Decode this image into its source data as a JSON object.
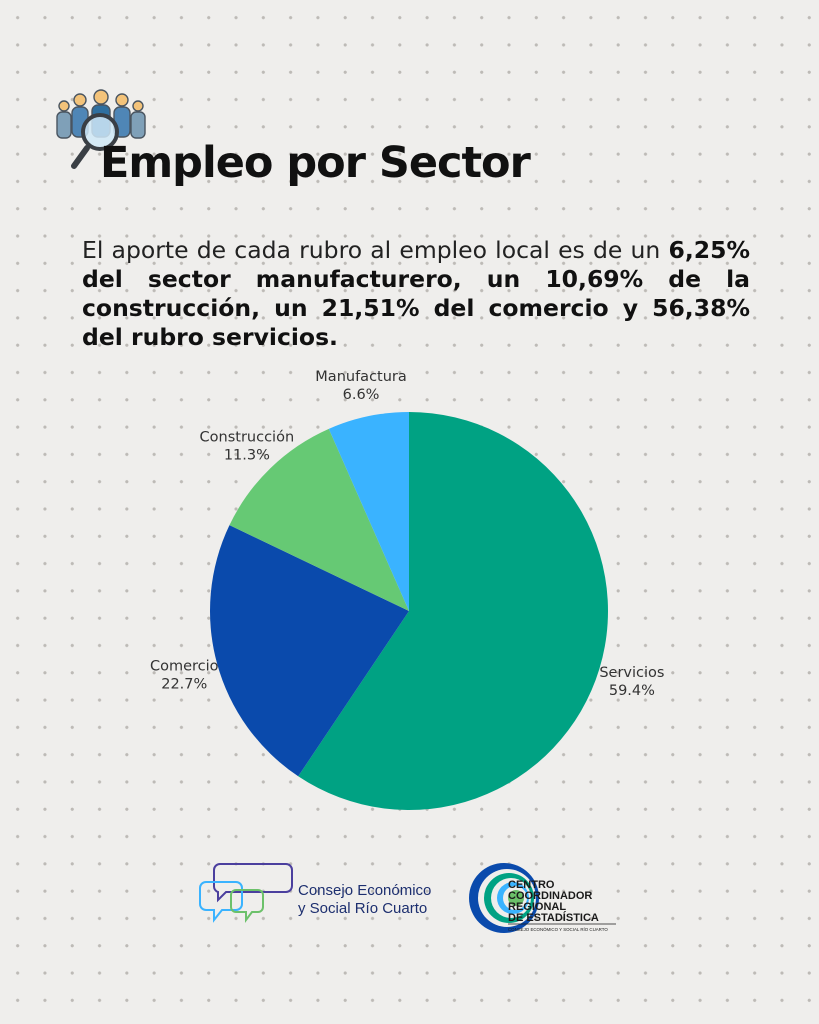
{
  "header": {
    "icon": "people-search-icon",
    "title": "Empleo por Sector"
  },
  "intro": {
    "lead": "El aporte de cada rubro al empleo local es de un ",
    "bold": "6,25% del sector manufacturero, un 10,69% de la construcción, un 21,51% del comercio y 56,38% del rubro servicios."
  },
  "chart_data": {
    "type": "pie",
    "title": "",
    "slices": [
      {
        "label": "Servicios",
        "value": 59.4,
        "pct_label": "59.4%",
        "color": "#00a283"
      },
      {
        "label": "Comercio",
        "value": 22.7,
        "pct_label": "22.7%",
        "color": "#0a4aac"
      },
      {
        "label": "Construcción",
        "value": 11.3,
        "pct_label": "11.3%",
        "color": "#66c974"
      },
      {
        "label": "Manufactura",
        "value": 6.6,
        "pct_label": "6.6%",
        "color": "#3ab3ff"
      }
    ]
  },
  "footer": {
    "ces_logo": {
      "icon": "speech-bubbles-icon",
      "line1": "Consejo Económico",
      "line2": "y Social Río Cuarto"
    },
    "ccre_logo": {
      "icon": "concentric-circles-icon",
      "line1": "CENTRO",
      "line2": "COORDINADOR",
      "line3": "REGIONAL",
      "line4": "DE ESTADÍSTICA",
      "subline": "CONSEJO ECONÓMICO Y SOCIAL RÍO CUARTO"
    }
  }
}
